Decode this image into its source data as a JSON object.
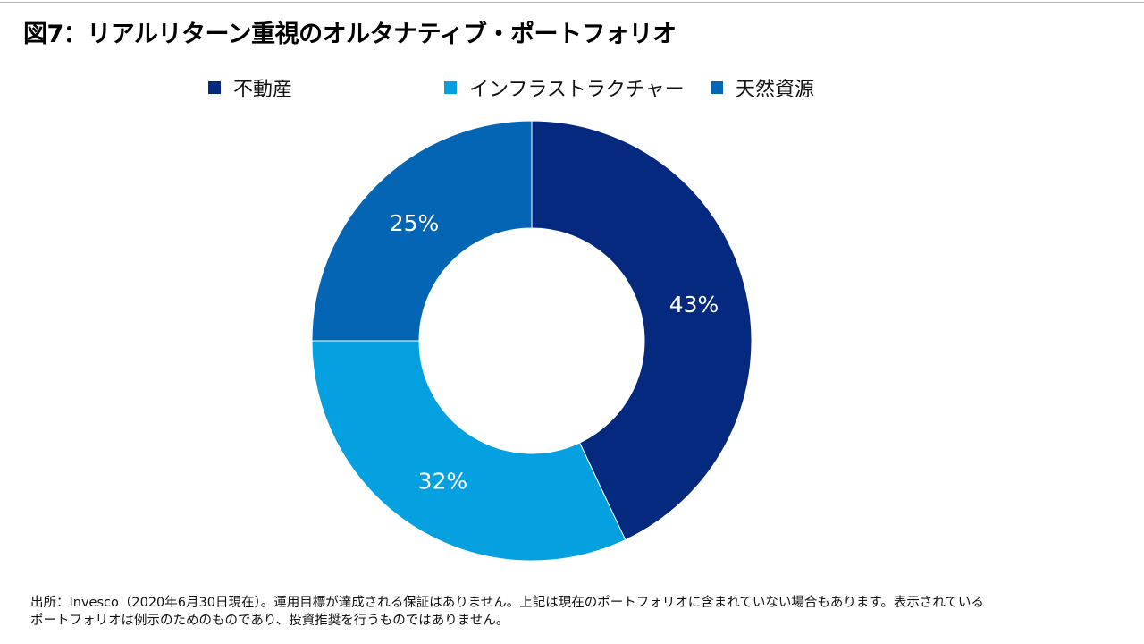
{
  "title": "図7：リアルリターン重視のオルタナティブ・ポートフォリオ",
  "chart_data": {
    "type": "pie",
    "title": "図7：リアルリターン重視のオルタナティブ・ポートフォリオ",
    "donut": true,
    "legend_position": "top",
    "categories": [
      "不動産",
      "インフラストラクチャー",
      "天然資源"
    ],
    "values": [
      43,
      32,
      25
    ],
    "unit": "%",
    "labels": [
      "43%",
      "32%",
      "25%"
    ],
    "colors": [
      "#05297e",
      "#04a0e0",
      "#0365b3"
    ]
  },
  "footnote": {
    "line1": "出所：Invesco（2020年6月30日現在）。運用目標が達成される保証はありません。上記は現在のポートフォリオに含まれていない場合もあります。表示されている",
    "line2": "ポートフォリオは例示のためのものであり、投資推奨を行うものではありません。"
  }
}
